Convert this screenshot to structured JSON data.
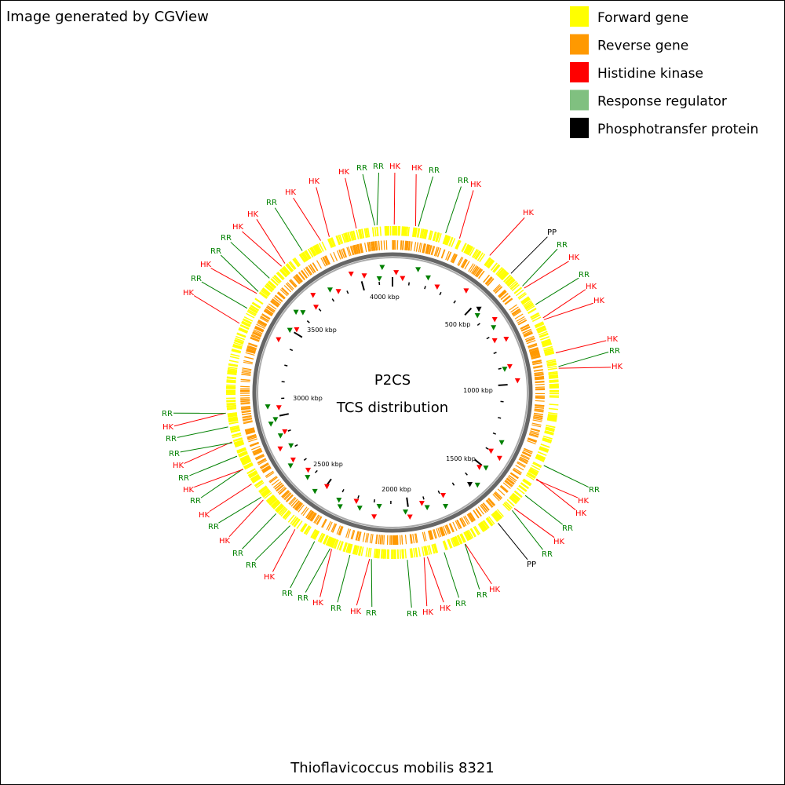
{
  "header": {
    "text": "Image generated by CGView"
  },
  "legend": [
    {
      "label": "Forward gene",
      "color": "#ffff00"
    },
    {
      "label": "Reverse gene",
      "color": "#ff9900"
    },
    {
      "label": "Histidine kinase",
      "color": "#ff0000"
    },
    {
      "label": "Response regulator",
      "color": "#80c080"
    },
    {
      "label": "Phosphotransfer protein",
      "color": "#000000"
    }
  ],
  "center": {
    "title": "P2CS",
    "subtitle": "TCS distribution"
  },
  "scale_labels": [
    "4000 kbp",
    "500 kbp",
    "1000 kbp",
    "1500 kbp",
    "2000 kbp",
    "2500 kbp",
    "3000 kbp",
    "3500 kbp"
  ],
  "feature_labels": [
    "HK",
    "RR",
    "HK",
    "RR",
    "RR",
    "HK",
    "HK",
    "RR",
    "HK",
    "HK",
    "HK",
    "RR",
    "RR",
    "HK",
    "HK",
    "RR",
    "RR",
    "HK",
    "HK",
    "PP",
    "RR",
    "HK",
    "RR",
    "HK",
    "HK",
    "HK",
    "RR",
    "HK",
    "RR",
    "HK",
    "HK",
    "RR",
    "HK",
    "RR",
    "PP",
    "HK",
    "RR",
    "RR",
    "HK",
    "HK",
    "RR",
    "RR",
    "HK",
    "RR",
    "HK",
    "RR",
    "RR",
    "HK",
    "RR",
    "RR",
    "HK",
    "RR",
    "HK",
    "RR",
    "HK",
    "RR",
    "HK",
    "RR",
    "RR",
    "HK",
    "RR"
  ],
  "footer": {
    "text": "Thioflavicoccus mobilis 8321"
  }
}
